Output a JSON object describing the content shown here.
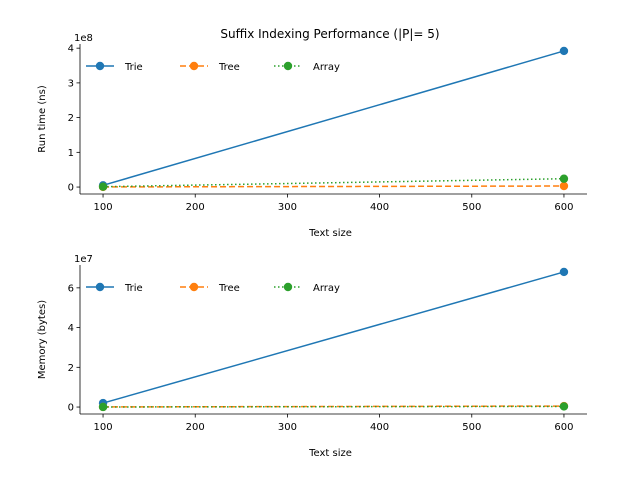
{
  "title": "Suffix Indexing Performance (|P|= 5)",
  "chart_data": [
    {
      "type": "line",
      "x": [
        100,
        600
      ],
      "series": [
        {
          "name": "Trie",
          "values": [
            5000000,
            392000000
          ],
          "color": "#1f77b4",
          "style": "solid"
        },
        {
          "name": "Tree",
          "values": [
            300000,
            3000000
          ],
          "color": "#ff7f0e",
          "style": "dashed"
        },
        {
          "name": "Array",
          "values": [
            1000000,
            24000000
          ],
          "color": "#2ca02c",
          "style": "dotted"
        }
      ],
      "xlabel": "Text size",
      "ylabel": "Run time (ns)",
      "xlim": [
        75,
        625
      ],
      "ylim": [
        -20000000,
        412000000
      ],
      "xticks": [
        100,
        200,
        300,
        400,
        500,
        600
      ],
      "yticks": [
        0,
        1,
        2,
        3,
        4
      ],
      "y_multiplier": "1e8",
      "legend": "top-left",
      "grid": false
    },
    {
      "type": "line",
      "x": [
        100,
        600
      ],
      "series": [
        {
          "name": "Trie",
          "values": [
            2000000,
            68000000
          ],
          "color": "#1f77b4",
          "style": "solid"
        },
        {
          "name": "Tree",
          "values": [
            50000,
            500000
          ],
          "color": "#ff7f0e",
          "style": "dashed"
        },
        {
          "name": "Array",
          "values": [
            30000,
            300000
          ],
          "color": "#2ca02c",
          "style": "dotted"
        }
      ],
      "xlabel": "Text size",
      "ylabel": "Memory (bytes)",
      "xlim": [
        75,
        625
      ],
      "ylim": [
        -3500000,
        71500000
      ],
      "xticks": [
        100,
        200,
        300,
        400,
        500,
        600
      ],
      "yticks": [
        0,
        2,
        4,
        6
      ],
      "y_multiplier": "1e7",
      "legend": "top-left",
      "grid": false
    }
  ]
}
